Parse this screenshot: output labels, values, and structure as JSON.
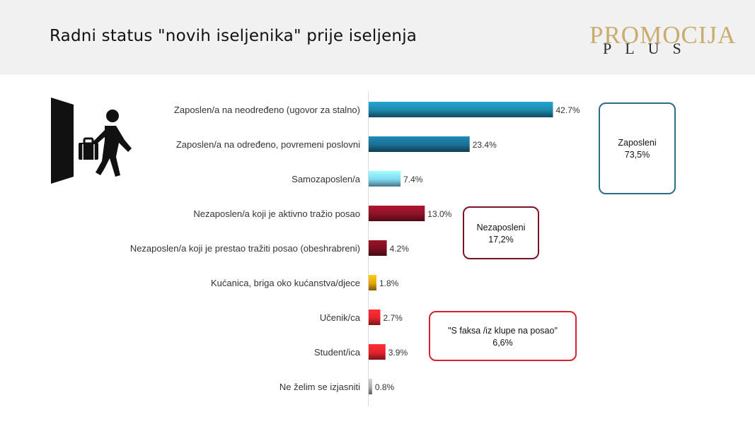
{
  "header": {
    "title": "Radni status \"novih iseljenika\" prije iseljenja",
    "logo_main": "PROMOCIJA",
    "logo_sub": "PLUS"
  },
  "chart_data": {
    "type": "bar",
    "orientation": "horizontal",
    "title": "Radni status \"novih iseljenika\" prije iseljenja",
    "xlim": [
      0,
      50
    ],
    "categories": [
      "Zaposlen/a na neodređeno (ugovor za stalno)",
      "Zaposlen/a na određeno, povremeni poslovni",
      "Samozaposlen/a",
      "Nezaposlen/a koji je aktivno tražio posao",
      "Nezaposlen/a koji je prestao tražiti posao (obeshrabreni)",
      "Kućanica, briga oko kućanstva/djece",
      "Učenik/ca",
      "Student/ica",
      "Ne želim se izjasniti"
    ],
    "values": [
      42.7,
      23.4,
      7.4,
      13.0,
      4.2,
      1.8,
      2.7,
      3.9,
      0.8
    ],
    "value_labels": [
      "42.7%",
      "23.4%",
      "7.4%",
      "13.0%",
      "4.2%",
      "1.8%",
      "2.7%",
      "3.9%",
      "0.8%"
    ],
    "colors": [
      "#1d86a9",
      "#1a6e93",
      "#7fd7ee",
      "#8c1226",
      "#7a1020",
      "#e0a40d",
      "#e3242c",
      "#e3242c",
      "#a8a8a8"
    ],
    "legend": "none",
    "grid": false
  },
  "groups": {
    "employed": {
      "line1": "Zaposleni",
      "line2": "73,5%"
    },
    "unemployed": {
      "line1": "Nezaposleni",
      "line2": "17,2%"
    },
    "students": {
      "line1": "\"S faksa /iz klupe na posao\"",
      "line2": "6,6%"
    }
  },
  "icons": {
    "exit": "person-exit-icon"
  }
}
